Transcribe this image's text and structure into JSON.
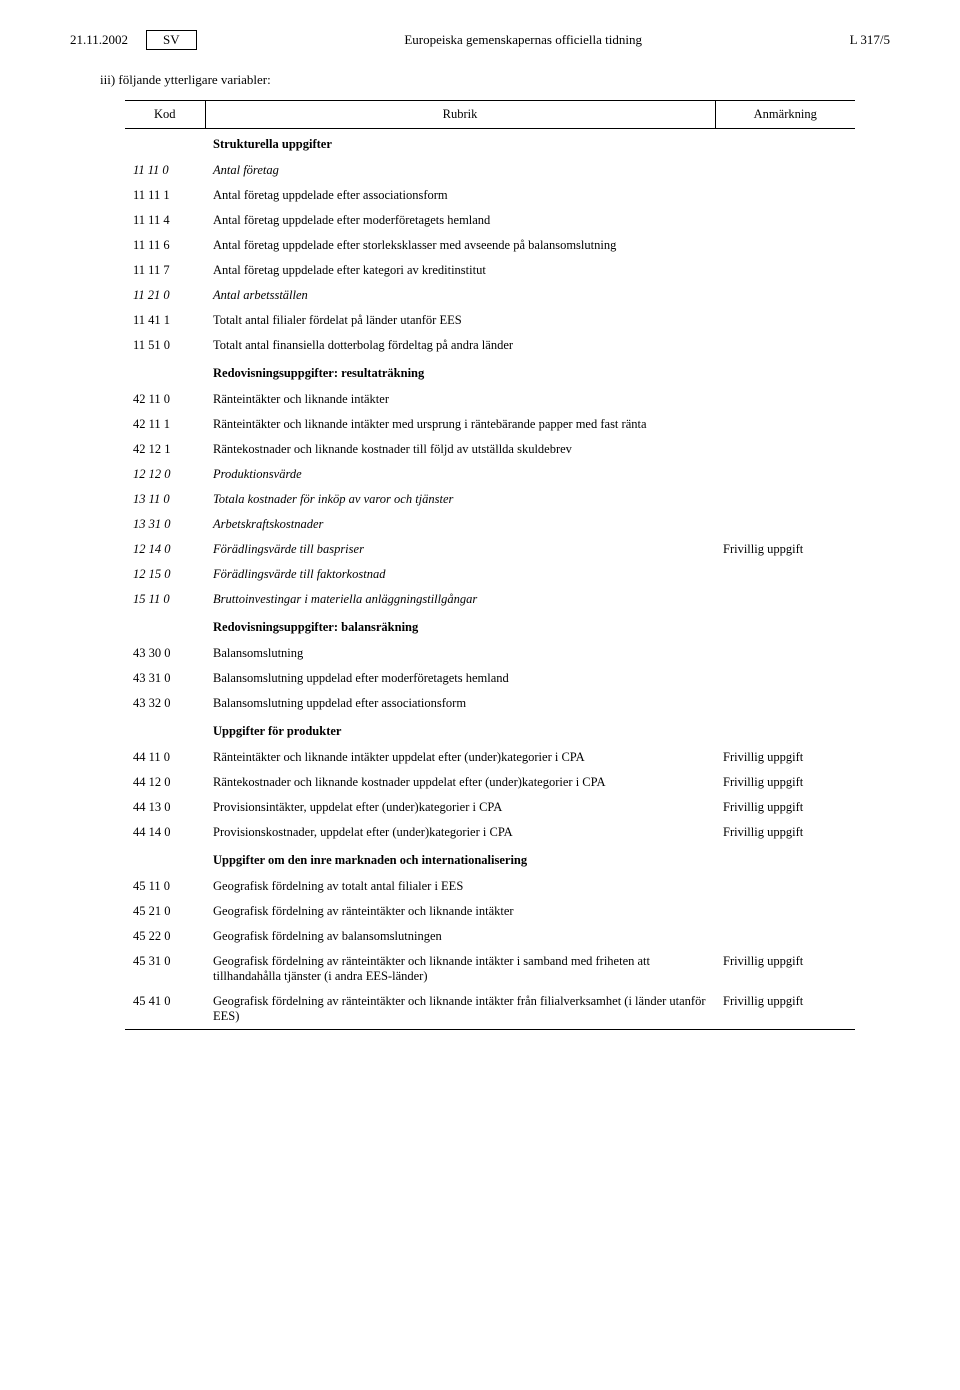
{
  "header": {
    "date": "21.11.2002",
    "lang": "SV",
    "title": "Europeiska gemenskapernas officiella tidning",
    "page": "L 317/5"
  },
  "intro": "iii) följande ytterligare variabler:",
  "columns": {
    "c1": "Kod",
    "c2": "Rubrik",
    "c3": "Anmärkning"
  },
  "rows": [
    {
      "kod": "",
      "rubrik": "Strukturella uppgifter",
      "anm": "",
      "heading": true
    },
    {
      "kod": "11 11 0",
      "rubrik": "Antal företag",
      "anm": "",
      "italic": true
    },
    {
      "kod": "11 11 1",
      "rubrik": "Antal företag uppdelade efter associationsform",
      "anm": ""
    },
    {
      "kod": "11 11 4",
      "rubrik": "Antal företag uppdelade efter moderföretagets hemland",
      "anm": ""
    },
    {
      "kod": "11 11 6",
      "rubrik": "Antal företag uppdelade efter storleksklasser med avseende på balansomslutning",
      "anm": ""
    },
    {
      "kod": "11 11 7",
      "rubrik": "Antal företag uppdelade efter kategori av kreditinstitut",
      "anm": ""
    },
    {
      "kod": "11 21 0",
      "rubrik": "Antal arbetsställen",
      "anm": "",
      "italic": true
    },
    {
      "kod": "11 41 1",
      "rubrik": "Totalt antal filialer fördelat på länder utanför EES",
      "anm": ""
    },
    {
      "kod": "11 51 0",
      "rubrik": "Totalt antal finansiella dotterbolag fördeltag på andra länder",
      "anm": ""
    },
    {
      "kod": "",
      "rubrik": "Redovisningsuppgifter: resultaträkning",
      "anm": "",
      "heading": true
    },
    {
      "kod": "42 11 0",
      "rubrik": "Ränteintäkter och liknande intäkter",
      "anm": ""
    },
    {
      "kod": "42 11 1",
      "rubrik": "Ränteintäkter och liknande intäkter med ursprung i räntebärande papper med fast ränta",
      "anm": ""
    },
    {
      "kod": "42 12 1",
      "rubrik": "Räntekostnader och liknande kostnader till följd av utställda skuldebrev",
      "anm": ""
    },
    {
      "kod": "12 12 0",
      "rubrik": "Produktionsvärde",
      "anm": "",
      "italic": true
    },
    {
      "kod": "13 11 0",
      "rubrik": "Totala kostnader för inköp av varor och tjänster",
      "anm": "",
      "italic": true
    },
    {
      "kod": "13 31 0",
      "rubrik": "Arbetskraftskostnader",
      "anm": "",
      "italic": true
    },
    {
      "kod": "12 14 0",
      "rubrik": "Förädlingsvärde till baspriser",
      "anm": "Frivillig uppgift",
      "italic": true
    },
    {
      "kod": "12 15 0",
      "rubrik": "Förädlingsvärde till faktorkostnad",
      "anm": "",
      "italic": true
    },
    {
      "kod": "15 11 0",
      "rubrik": "Bruttoinvestingar i materiella anläggningstillgångar",
      "anm": "",
      "italic": true
    },
    {
      "kod": "",
      "rubrik": "Redovisningsuppgifter: balansräkning",
      "anm": "",
      "heading": true
    },
    {
      "kod": "43 30 0",
      "rubrik": "Balansomslutning",
      "anm": ""
    },
    {
      "kod": "43 31 0",
      "rubrik": "Balansomslutning uppdelad efter moderföretagets hemland",
      "anm": ""
    },
    {
      "kod": "43 32 0",
      "rubrik": "Balansomslutning uppdelad efter associationsform",
      "anm": ""
    },
    {
      "kod": "",
      "rubrik": "Uppgifter för produkter",
      "anm": "",
      "heading": true
    },
    {
      "kod": "44 11 0",
      "rubrik": "Ränteintäkter och liknande intäkter uppdelat efter (under)kategorier i CPA",
      "anm": "Frivillig uppgift"
    },
    {
      "kod": "44 12 0",
      "rubrik": "Räntekostnader och liknande kostnader uppdelat efter (under)kategorier i CPA",
      "anm": "Frivillig uppgift"
    },
    {
      "kod": "44 13 0",
      "rubrik": "Provisionsintäkter, uppdelat efter (under)kategorier i CPA",
      "anm": "Frivillig uppgift"
    },
    {
      "kod": "44 14 0",
      "rubrik": "Provisionskostnader, uppdelat efter (under)kategorier i CPA",
      "anm": "Frivillig uppgift"
    },
    {
      "kod": "",
      "rubrik": "Uppgifter om den inre marknaden och internationalisering",
      "anm": "",
      "heading": true
    },
    {
      "kod": "45 11 0",
      "rubrik": "Geografisk fördelning av totalt antal filialer i EES",
      "anm": ""
    },
    {
      "kod": "45 21 0",
      "rubrik": "Geografisk fördelning av ränteintäkter och liknande intäkter",
      "anm": ""
    },
    {
      "kod": "45 22 0",
      "rubrik": "Geografisk fördelning av balansomslutningen",
      "anm": ""
    },
    {
      "kod": "45 31 0",
      "rubrik": "Geografisk fördelning av ränteintäkter och liknande intäkter i samband med friheten att tillhandahålla tjänster (i andra EES-länder)",
      "anm": "Frivillig uppgift"
    },
    {
      "kod": "45 41 0",
      "rubrik": "Geografisk fördelning av ränteintäkter och liknande intäkter från filialverksamhet (i länder utanför EES)",
      "anm": "Frivillig uppgift"
    }
  ]
}
